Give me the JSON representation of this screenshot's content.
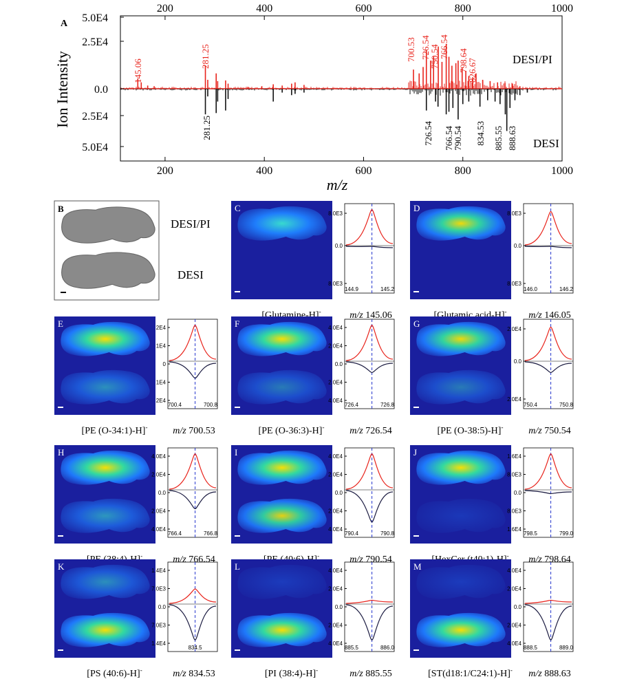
{
  "panel_A": {
    "letter": "A",
    "ylabel": "Ion Intensity",
    "xlabel": "m/z",
    "top_label": "DESI/PI",
    "bottom_label": "DESI",
    "ytick_labels": [
      "5.0E4",
      "2.5E4",
      "0.0",
      "2.5E4",
      "5.0E4"
    ],
    "xtick_labels": [
      "200",
      "400",
      "600",
      "800",
      "1000"
    ],
    "colors": {
      "top": "#e8231b",
      "bottom": "#111111"
    },
    "top_annotations": [
      "145.06",
      "281.25",
      "700.53",
      "726.54",
      "750.54",
      "766.54",
      "798.64",
      "826.67"
    ],
    "bottom_annotations": [
      "281.25",
      "726.54",
      "766.54",
      "790.54",
      "834.53",
      "885.55",
      "888.63"
    ]
  },
  "chart_data": {
    "type": "bar",
    "title": "",
    "xlabel": "m/z",
    "ylabel": "Ion Intensity",
    "xlim": [
      110,
      1000
    ],
    "ylim": [
      -55000,
      55000
    ],
    "series": [
      {
        "name": "DESI/PI",
        "x": [
          145.06,
          152,
          165,
          178,
          281.25,
          286,
          303,
          306,
          322,
          327,
          367,
          395,
          418,
          436,
          455,
          462,
          480,
          700.53,
          712,
          720,
          726.54,
          735,
          741,
          750.54,
          758,
          766.54,
          772,
          778,
          786,
          790.54,
          798.64,
          806,
          812,
          820,
          826.67,
          840,
          855,
          870,
          885,
          900,
          915
        ],
        "values": [
          8000,
          5000,
          2500,
          2000,
          18000,
          7000,
          12000,
          6000,
          6500,
          4000,
          1500,
          2000,
          3500,
          2500,
          4000,
          5000,
          3000,
          15000,
          12000,
          17000,
          30000,
          22000,
          25000,
          33000,
          21000,
          35000,
          25000,
          18000,
          20000,
          22000,
          16000,
          14000,
          10000,
          9000,
          12000,
          7000,
          6000,
          5000,
          4500,
          4000,
          2000
        ]
      },
      {
        "name": "DESI",
        "x": [
          281.25,
          286,
          303,
          306,
          322,
          327,
          418,
          436,
          455,
          462,
          480,
          726.54,
          745,
          750,
          766.54,
          772,
          780,
          790.54,
          800,
          812,
          834.53,
          850,
          865,
          875,
          885.55,
          888.63,
          895,
          905,
          915,
          930
        ],
        "values": [
          -20000,
          -6000,
          -19000,
          -10000,
          -17000,
          -8000,
          -10000,
          -3000,
          -5000,
          -4000,
          -3000,
          -17000,
          -10000,
          -14000,
          -20000,
          -18000,
          -15000,
          -24000,
          -12000,
          -10000,
          -14000,
          -9000,
          -10000,
          -12000,
          -20000,
          -33000,
          -15000,
          -9000,
          -5000,
          -3000
        ]
      }
    ]
  },
  "panel_B": {
    "letter": "B",
    "label_top": "DESI/PI",
    "label_bottom": "DESI"
  },
  "ion_panels": [
    {
      "letter": "C",
      "name": "[Glutamine-H]",
      "sup": "-",
      "mz_prefix": "m/z",
      "mz": "145.06",
      "yticks": [
        "8.0E3",
        "0.0",
        "8.0E3"
      ],
      "xticks": [
        "144.9",
        "145.2"
      ],
      "top": 0.95,
      "bottom": 0.02
    },
    {
      "letter": "D",
      "name": "[Glutamic acid-H]",
      "sup": "-",
      "mz_prefix": "m/z",
      "mz": "146.05",
      "yticks": [
        "8.0E3",
        "0.0",
        "8.0E3"
      ],
      "xticks": [
        "146.0",
        "146.2"
      ],
      "top": 0.9,
      "bottom": 0.02
    },
    {
      "letter": "E",
      "name": "[PE (O-34:1)-H]",
      "sup": "-",
      "mz_prefix": "m/z",
      "mz": "700.53",
      "yticks": [
        "2E4",
        "1E4",
        "0",
        "1E4",
        "2E4"
      ],
      "xticks": [
        "700.4",
        "700.8"
      ],
      "top": 0.95,
      "bottom": 0.45
    },
    {
      "letter": "F",
      "name": "[PE (O-36:3)-H]",
      "sup": "-",
      "mz_prefix": "m/z",
      "mz": "726.54",
      "yticks": [
        "4.0E4",
        "2.0E4",
        "0.0",
        "2.0E4",
        "4.0E4"
      ],
      "xticks": [
        "726.4",
        "726.8"
      ],
      "top": 0.95,
      "bottom": 0.3
    },
    {
      "letter": "G",
      "name": "[PE (O-38:5)-H]",
      "sup": "-",
      "mz_prefix": "m/z",
      "mz": "750.54",
      "yticks": [
        "2.0E4",
        "0.0",
        "2.0E4"
      ],
      "xticks": [
        "750.4",
        "750.8"
      ],
      "top": 0.9,
      "bottom": 0.3
    },
    {
      "letter": "H",
      "name": "[PE (38:4)-H]",
      "sup": "-",
      "mz_prefix": "m/z",
      "mz": "766.54",
      "yticks": [
        "4.0E4",
        "2.0E4",
        "0.0",
        "2.0E4",
        "4.0E4"
      ],
      "xticks": [
        "766.4",
        "766.8"
      ],
      "top": 0.95,
      "bottom": 0.5
    },
    {
      "letter": "I",
      "name": "[PE (40:6)-H]",
      "sup": "-",
      "mz_prefix": "m/z",
      "mz": "790.54",
      "yticks": [
        "4.0E4",
        "2.0E4",
        "0.0",
        "2.0E4",
        "4.0E4"
      ],
      "xticks": [
        "790.4",
        "790.8"
      ],
      "top": 0.95,
      "bottom": 0.85
    },
    {
      "letter": "J",
      "name": "[HexCer (t40:1)-H]",
      "sup": "-",
      "mz_prefix": "m/z",
      "mz": "798.64",
      "yticks": [
        "1.6E4",
        "8.0E3",
        "0.0",
        "8.0E3",
        "1.6E4"
      ],
      "xticks": [
        "798.5",
        "799.0"
      ],
      "top": 0.95,
      "bottom": 0.1
    },
    {
      "letter": "K",
      "name": "[PS (40:6)-H]",
      "sup": "-",
      "mz_prefix": "m/z",
      "mz": "834.53",
      "yticks": [
        "1.4E4",
        "7.0E3",
        "0.0",
        "7.0E3",
        "1.4E4"
      ],
      "xticks": [
        "834.5"
      ],
      "top": 0.4,
      "bottom": 0.95
    },
    {
      "letter": "L",
      "name": "[PI (38:4)-H]",
      "sup": "-",
      "mz_prefix": "m/z",
      "mz": "885.55",
      "yticks": [
        "4.0E4",
        "2.0E4",
        "0.0",
        "2.0E4",
        "4.0E4"
      ],
      "xticks": [
        "885.5",
        "886.0"
      ],
      "top": 0.1,
      "bottom": 0.95
    },
    {
      "letter": "M",
      "name": "[ST(d18:1/C24:1)-H]",
      "sup": "-",
      "mz_prefix": "m/z",
      "mz": "888.63",
      "yticks": [
        "4.0E4",
        "2.0E4",
        "0.0",
        "2.0E4",
        "4.0E4"
      ],
      "xticks": [
        "888.5",
        "889.0"
      ],
      "top": 0.1,
      "bottom": 0.95
    }
  ]
}
